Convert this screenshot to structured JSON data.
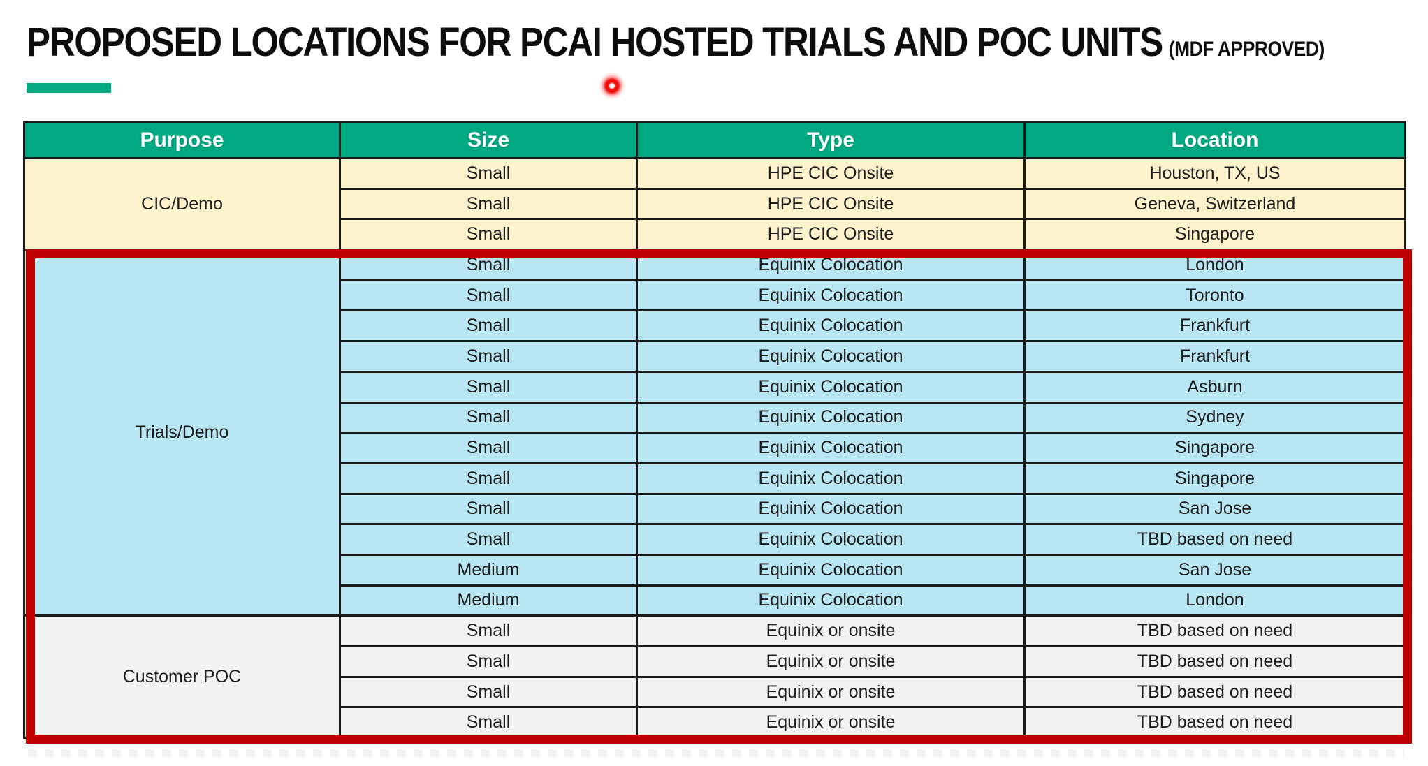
{
  "page": {
    "title": "PROPOSED LOCATIONS FOR PCAI HOSTED TRIALS AND POC UNITS",
    "title_suffix": "(MDF APPROVED)"
  },
  "colors": {
    "accent_bar": "#01A982",
    "header_bg": "#01A982",
    "cic_group_bg": "#FCF2CC",
    "trials_group_bg": "#B8E6F2",
    "poc_group_bg": "#F2F2F2",
    "grid_border": "#1A1A1A",
    "highlight_border": "#C00000",
    "laser_dot": "#FF0000"
  },
  "table": {
    "columns": [
      "Purpose",
      "Size",
      "Type",
      "Location"
    ],
    "groups": [
      {
        "purpose": "CIC/Demo",
        "bg": "#FCF2CC",
        "rows": [
          [
            "Small",
            "HPE CIC Onsite",
            "Houston, TX, US"
          ],
          [
            "Small",
            "HPE CIC Onsite",
            "Geneva, Switzerland"
          ],
          [
            "Small",
            "HPE CIC Onsite",
            "Singapore"
          ]
        ]
      },
      {
        "purpose": "Trials/Demo",
        "bg": "#B8E6F2",
        "rows": [
          [
            "Small",
            "Equinix Colocation",
            "London"
          ],
          [
            "Small",
            "Equinix Colocation",
            "Toronto"
          ],
          [
            "Small",
            "Equinix Colocation",
            "Frankfurt"
          ],
          [
            "Small",
            "Equinix Colocation",
            "Frankfurt"
          ],
          [
            "Small",
            "Equinix Colocation",
            "Asburn"
          ],
          [
            "Small",
            "Equinix Colocation",
            "Sydney"
          ],
          [
            "Small",
            "Equinix Colocation",
            "Singapore"
          ],
          [
            "Small",
            "Equinix Colocation",
            "Singapore"
          ],
          [
            "Small",
            "Equinix Colocation",
            "San Jose"
          ],
          [
            "Small",
            "Equinix Colocation",
            "TBD based on need"
          ],
          [
            "Medium",
            "Equinix Colocation",
            "San Jose"
          ],
          [
            "Medium",
            "Equinix Colocation",
            "London"
          ]
        ]
      },
      {
        "purpose": "Customer POC",
        "bg": "#F2F2F2",
        "rows": [
          [
            "Small",
            "Equinix or onsite",
            "TBD based on need"
          ],
          [
            "Small",
            "Equinix or onsite",
            "TBD based on need"
          ],
          [
            "Small",
            "Equinix or onsite",
            "TBD based on need"
          ],
          [
            "Small",
            "Equinix or onsite",
            "TBD based on need"
          ]
        ]
      }
    ]
  },
  "annotations": {
    "highlight_box_note": "red rectangle around Trials/Demo and Customer POC groups",
    "laser_pointer_note": "red laser pointer dot near title"
  }
}
